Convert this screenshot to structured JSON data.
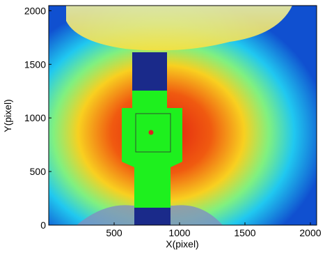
{
  "chart_data": {
    "type": "image",
    "xlabel": "X(pixel)",
    "ylabel": "Y(pixel)",
    "xlim": [
      0,
      2048
    ],
    "ylim": [
      0,
      2048
    ],
    "xticks": [
      500,
      1000,
      1500,
      2000
    ],
    "yticks": [
      0,
      500,
      1000,
      1500,
      2000
    ]
  }
}
